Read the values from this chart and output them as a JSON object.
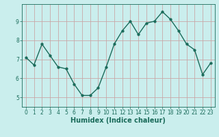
{
  "xlabel": "Humidex (Indice chaleur)",
  "x": [
    0,
    1,
    2,
    3,
    4,
    5,
    6,
    7,
    8,
    9,
    10,
    11,
    12,
    13,
    14,
    15,
    16,
    17,
    18,
    19,
    20,
    21,
    22,
    23
  ],
  "y": [
    7.1,
    6.7,
    7.8,
    7.2,
    6.6,
    6.5,
    5.7,
    5.1,
    5.1,
    5.5,
    6.6,
    7.8,
    8.5,
    9.0,
    8.3,
    8.9,
    9.0,
    9.5,
    9.1,
    8.5,
    7.8,
    7.5,
    6.2,
    6.8
  ],
  "line_color": "#1a6b5a",
  "marker_size": 2.5,
  "linewidth": 1.0,
  "background_color": "#caeeed",
  "grid_color": "#c8a8a8",
  "ylim": [
    4.5,
    9.9
  ],
  "xlim": [
    -0.5,
    23.5
  ],
  "yticks": [
    5,
    6,
    7,
    8,
    9
  ],
  "xticks": [
    0,
    1,
    2,
    3,
    4,
    5,
    6,
    7,
    8,
    9,
    10,
    11,
    12,
    13,
    14,
    15,
    16,
    17,
    18,
    19,
    20,
    21,
    22,
    23
  ],
  "tick_fontsize": 5.5,
  "xlabel_fontsize": 7
}
